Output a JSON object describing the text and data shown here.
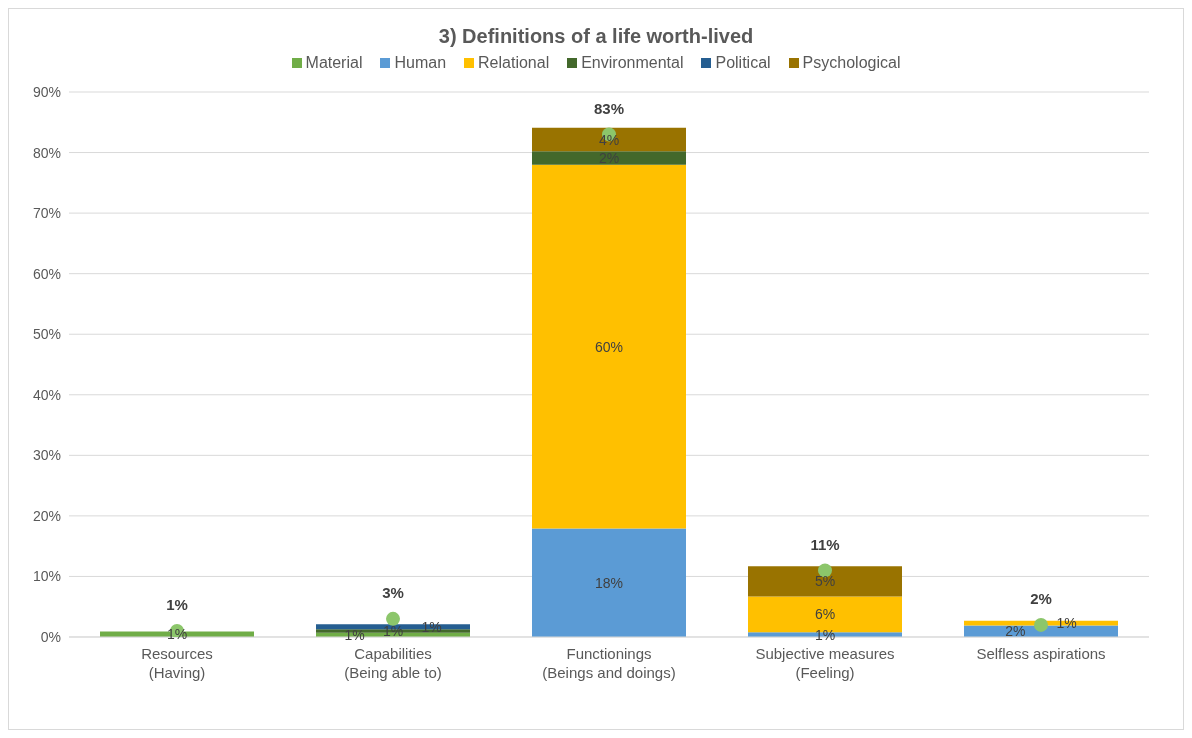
{
  "chart_data": {
    "type": "bar",
    "title": "3) Definitions of a life worth-lived",
    "categories": [
      "Resources\n(Having)",
      "Capabilities\n(Being able to)",
      "Functionings\n(Beings and doings)",
      "Subjective measures\n(Feeling)",
      "Selfless aspirations"
    ],
    "stacked": true,
    "series": [
      {
        "name": "Material",
        "color": "#70ad47",
        "values": [
          0.9,
          0.7,
          null,
          null,
          null
        ],
        "value_labels": [
          "1%",
          "1%",
          null,
          null,
          null
        ]
      },
      {
        "name": "Human",
        "color": "#5b9bd5",
        "values": [
          null,
          null,
          17.9,
          0.8,
          1.9
        ],
        "value_labels": [
          null,
          null,
          "18%",
          "1%",
          "2%"
        ]
      },
      {
        "name": "Relational",
        "color": "#ffc000",
        "values": [
          null,
          null,
          60.1,
          5.9,
          0.8
        ],
        "value_labels": [
          null,
          null,
          "60%",
          "6%",
          "1%"
        ]
      },
      {
        "name": "Environmental",
        "color": "#43682b",
        "values": [
          null,
          0.6,
          2.2,
          null,
          null
        ],
        "value_labels": [
          null,
          "1%",
          "2%",
          null,
          null
        ]
      },
      {
        "name": "Political",
        "color": "#255e91",
        "values": [
          null,
          0.8,
          null,
          null,
          null
        ],
        "value_labels": [
          null,
          "1%",
          null,
          null,
          null
        ]
      },
      {
        "name": "Psychological",
        "color": "#997300",
        "values": [
          null,
          null,
          3.9,
          5,
          null
        ],
        "value_labels": [
          null,
          null,
          "4%",
          "5%",
          null
        ]
      },
      {
        "type": "scatter",
        "color": "#8cc66b",
        "values": [
          1,
          3,
          83,
          11,
          2
        ],
        "value_labels": [
          "1%",
          "3%",
          "83%",
          "11%",
          "2%"
        ]
      }
    ],
    "ylim": [
      0,
      90
    ],
    "yticks": [
      {
        "value": 0,
        "label": "0%"
      },
      {
        "value": 10,
        "label": "10%"
      },
      {
        "value": 20,
        "label": "20%"
      },
      {
        "value": 30,
        "label": "30%"
      },
      {
        "value": 40,
        "label": "40%"
      },
      {
        "value": 50,
        "label": "50%"
      },
      {
        "value": 60,
        "label": "60%"
      },
      {
        "value": 70,
        "label": "70%"
      },
      {
        "value": 80,
        "label": "80%"
      },
      {
        "value": 90,
        "label": "90%"
      }
    ],
    "grid": "y",
    "legend": "top",
    "marker": "circle"
  }
}
